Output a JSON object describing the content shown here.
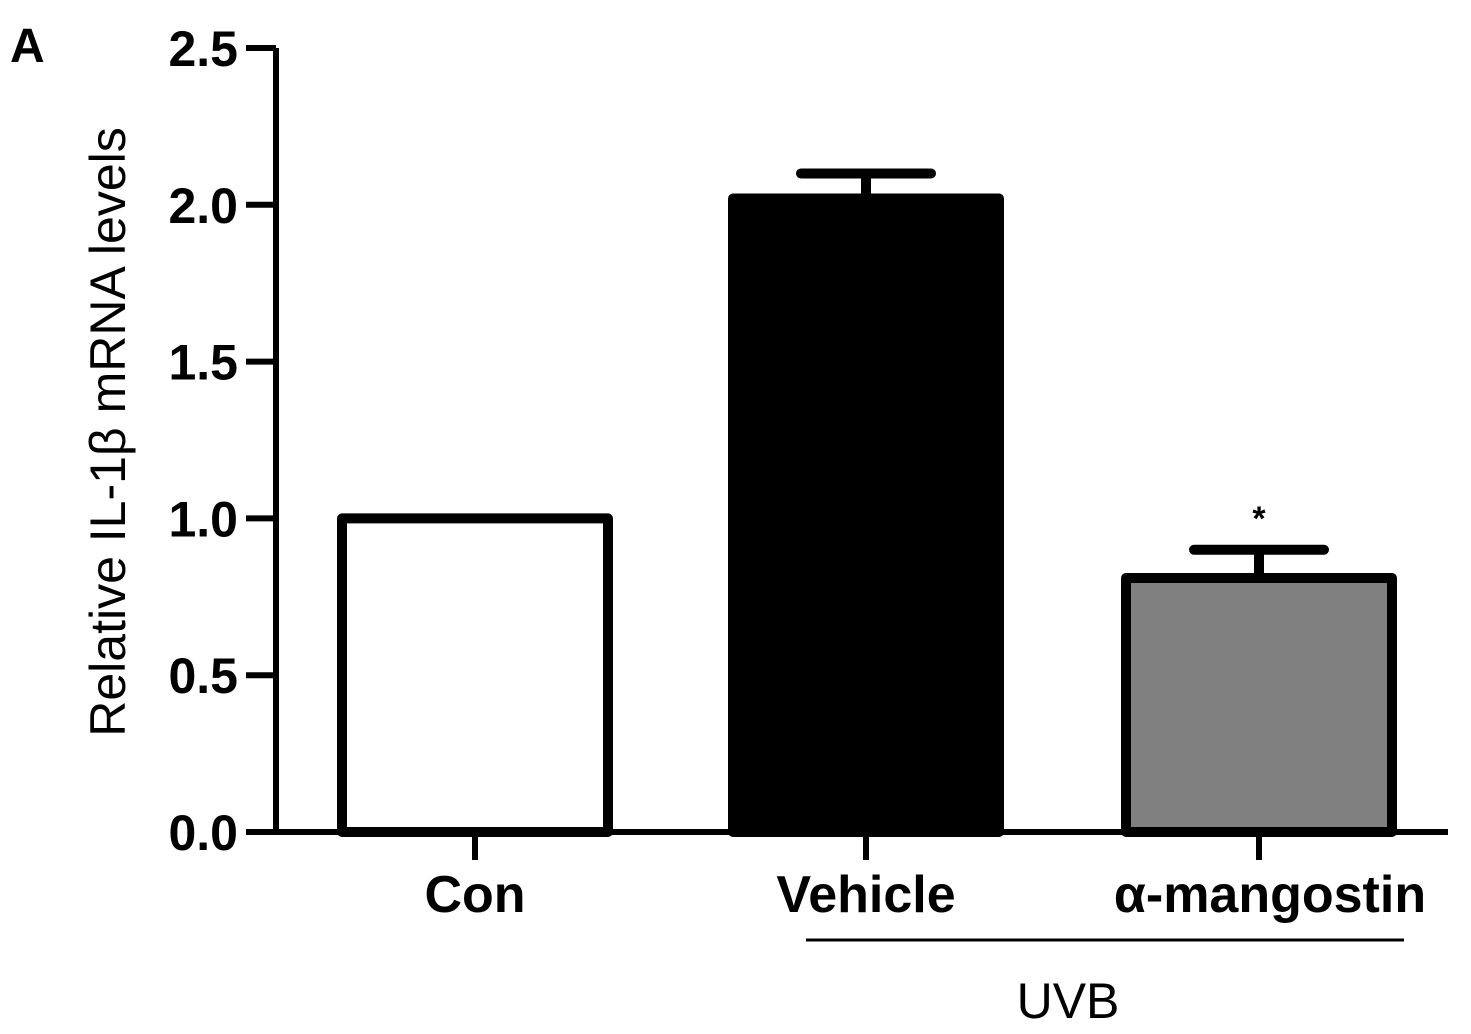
{
  "panel_label": "A",
  "chart_data": {
    "type": "bar",
    "title": "",
    "xlabel": "",
    "ylabel": "Relative IL-1β mRNA levels",
    "ylim": [
      0,
      2.5
    ],
    "yticks": [
      "0.0",
      "0.5",
      "1.0",
      "1.5",
      "2.0",
      "2.5"
    ],
    "categories": [
      "Con",
      "Vehicle",
      "α-mangostin"
    ],
    "values": [
      1.0,
      2.02,
      0.81
    ],
    "errors": [
      0,
      0.08,
      0.09
    ],
    "bar_colors": [
      "#ffffff",
      "#000000",
      "#808080"
    ],
    "annotations": [
      "",
      "",
      "*"
    ],
    "group_label": "UVB",
    "group_categories": [
      "Vehicle",
      "α-mangostin"
    ],
    "grid": false,
    "legend": "none"
  }
}
